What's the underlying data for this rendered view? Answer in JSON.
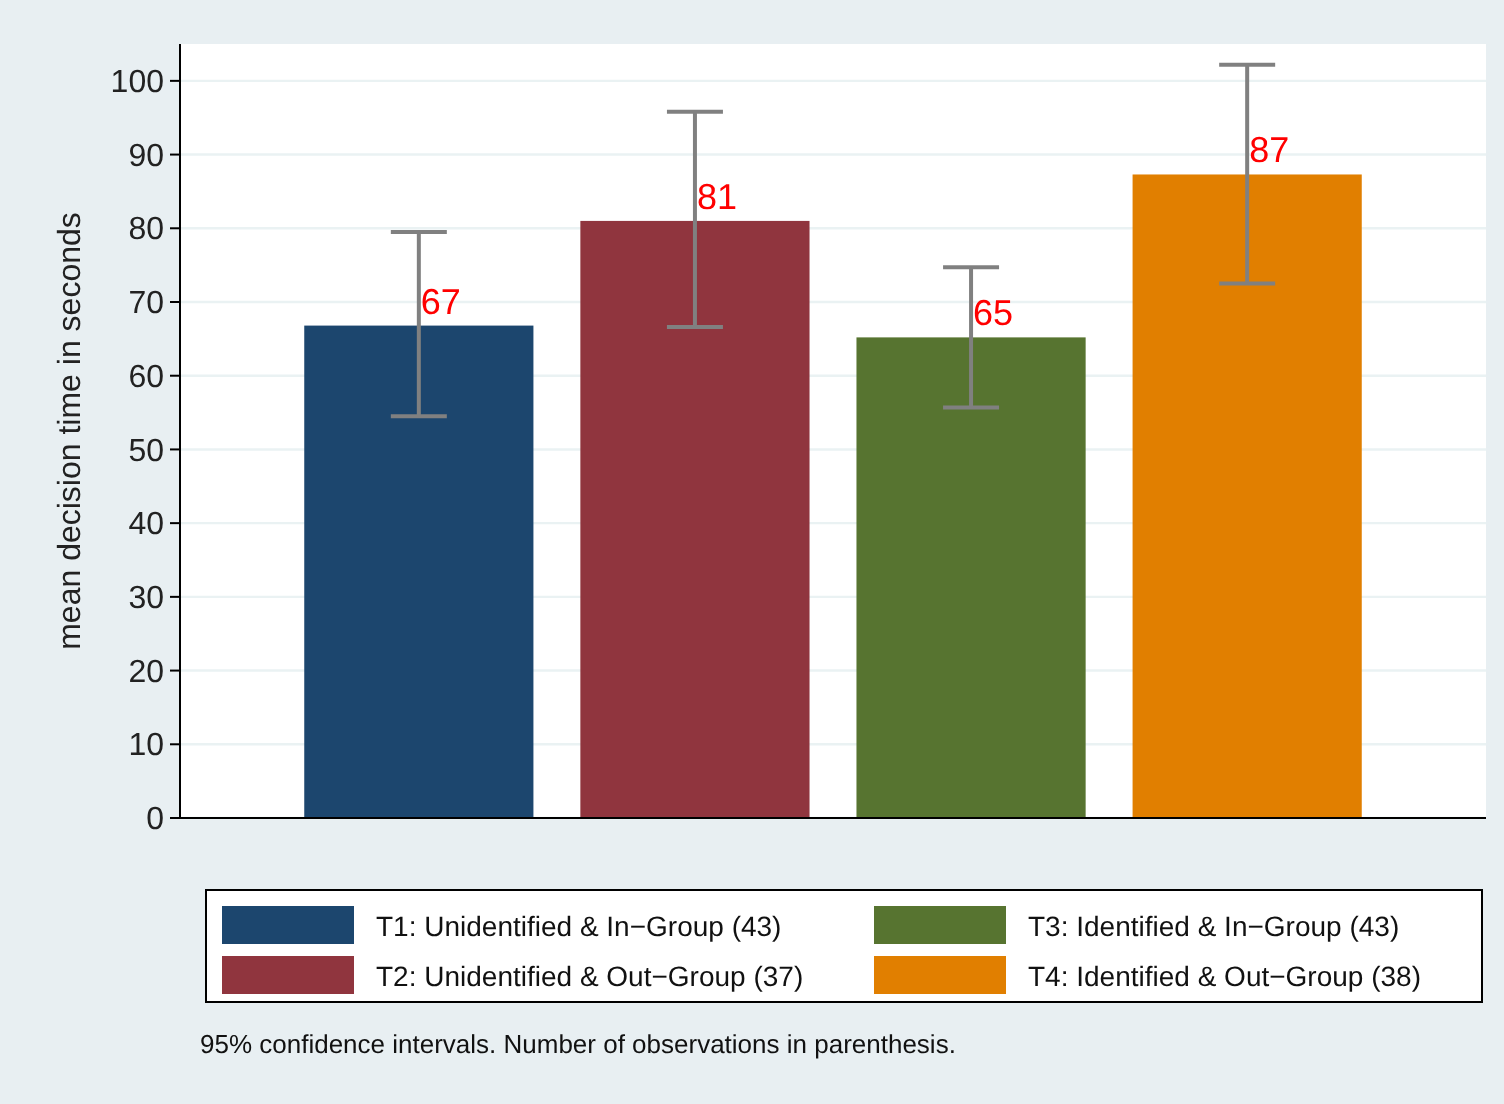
{
  "chart_data": {
    "type": "bar",
    "ylabel": "mean decision time in seconds",
    "categories": [
      null,
      null,
      null,
      null
    ],
    "series": [
      {
        "name": "T1: Unidentified & In−Group (43)",
        "color": "#1c466e",
        "values": [
          66.8,
          null,
          null,
          null
        ],
        "errors": [
          [
            54.5,
            79.5
          ],
          null,
          null,
          null
        ],
        "value_labels": [
          "67",
          null,
          null,
          null
        ]
      },
      {
        "name": "T2: Unidentified & Out−Group (37)",
        "color": "#90353e",
        "values": [
          null,
          81.0,
          null,
          null
        ],
        "errors": [
          null,
          [
            66.6,
            95.8
          ],
          null,
          null
        ],
        "value_labels": [
          null,
          "81",
          null,
          null
        ]
      },
      {
        "name": "T3: Identified & In−Group (43)",
        "color": "#577430",
        "values": [
          null,
          null,
          65.2,
          null
        ],
        "errors": [
          null,
          null,
          [
            55.7,
            74.7
          ],
          null
        ],
        "value_labels": [
          null,
          null,
          "65",
          null
        ]
      },
      {
        "name": "T4: Identified & Out−Group (38)",
        "color": "#e17f00",
        "values": [
          null,
          null,
          null,
          87.3
        ],
        "errors": [
          null,
          null,
          null,
          [
            72.5,
            102.2
          ]
        ],
        "value_labels": [
          null,
          null,
          null,
          "87"
        ]
      }
    ],
    "ylim": [
      0,
      105
    ],
    "yticks": [
      0,
      10,
      20,
      30,
      40,
      50,
      60,
      70,
      80,
      90,
      100
    ],
    "grid": "y",
    "legend": "bottom",
    "annotations": [
      "95% confidence intervals. Number of observations in parenthesis."
    ]
  }
}
